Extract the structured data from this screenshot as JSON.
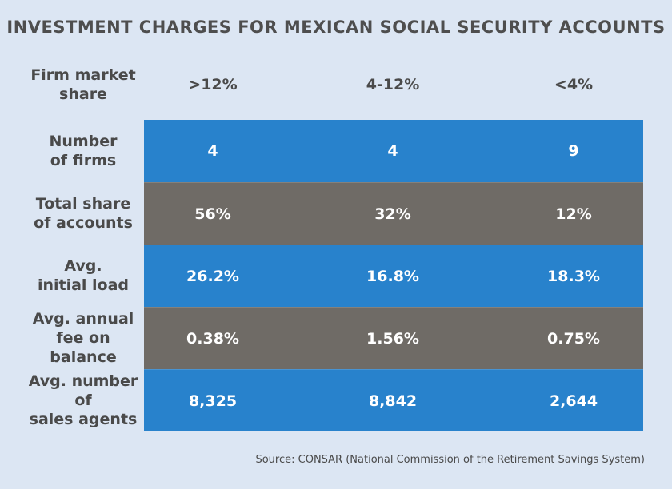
{
  "title": "INVESTMENT CHARGES FOR MEXICAN SOCIAL SECURITY ACCOUNTS",
  "source": "Source: CONSAR (National Commission of the Retirement Savings System)",
  "colors": {
    "background": "#dce6f3",
    "blue_row": "#2882cc",
    "gray_row": "#6f6b66",
    "text": "#4a4a4a"
  },
  "chart_data": {
    "type": "table",
    "title": "INVESTMENT CHARGES FOR MEXICAN SOCIAL SECURITY ACCOUNTS",
    "header_label": "Firm market\nshare",
    "columns": [
      ">12%",
      "4-12%",
      "<4%"
    ],
    "rows": [
      {
        "label": "Number\nof firms",
        "values": [
          "4",
          "4",
          "9"
        ],
        "style": "blue"
      },
      {
        "label": "Total share\nof accounts",
        "values": [
          "56%",
          "32%",
          "12%"
        ],
        "style": "gray"
      },
      {
        "label": "Avg.\ninitial load",
        "values": [
          "26.2%",
          "16.8%",
          "18.3%"
        ],
        "style": "blue"
      },
      {
        "label": "Avg. annual\nfee on\nbalance",
        "values": [
          "0.38%",
          "1.56%",
          "0.75%"
        ],
        "style": "gray"
      },
      {
        "label": "Avg. number\nof\nsales agents",
        "values": [
          "8,325",
          "8,842",
          "2,644"
        ],
        "style": "blue"
      }
    ]
  }
}
